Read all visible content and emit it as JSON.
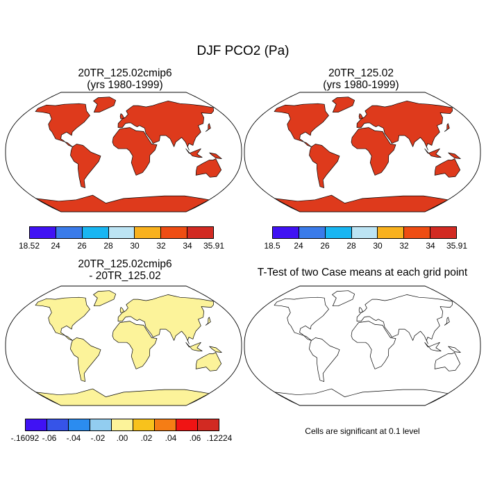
{
  "title": "DJF PCO2 (Pa)",
  "colors": {
    "abs_scale": [
      "#4012f4",
      "#3a7bea",
      "#19b6f2",
      "#bce4f4",
      "#f8b11e",
      "#ee4d13",
      "#d22a22"
    ],
    "diff_scale": [
      "#4012f4",
      "#3654e8",
      "#2b8cf0",
      "#92cdf0",
      "#fcf39a",
      "#f8c21c",
      "#f57d15",
      "#f01414",
      "#d22a22"
    ],
    "ocean": "#ffffff",
    "coast": "#000000"
  },
  "panels": [
    {
      "id": "case1",
      "title_line1": "20TR_125.02cmip6",
      "title_line2": "(yrs 1980-1999)",
      "colorbar_labels": [
        "18.52",
        "24",
        "26",
        "28",
        "30",
        "32",
        "34",
        "35.91"
      ],
      "land_fill": "#de3a1c"
    },
    {
      "id": "case2",
      "title_line1": "20TR_125.02",
      "title_line2": "(yrs 1980-1999)",
      "colorbar_labels": [
        "18.5",
        "24",
        "26",
        "28",
        "30",
        "32",
        "34",
        "35.91"
      ],
      "land_fill": "#de3a1c"
    },
    {
      "id": "difference",
      "title_line1": "20TR_125.02cmip6",
      "title_line2": "- 20TR_125.02",
      "colorbar_labels": [
        "-.16092",
        "-.06",
        "-.04",
        "-.02",
        ".00",
        ".02",
        ".04",
        ".06",
        ".12224"
      ],
      "land_fill": "#fcf39a"
    },
    {
      "id": "ttest",
      "title_line1": "T-Test of two Case means at each grid point",
      "title_line2": "",
      "note": "Cells are significant at 0.1 level",
      "land_fill": "none"
    }
  ]
}
